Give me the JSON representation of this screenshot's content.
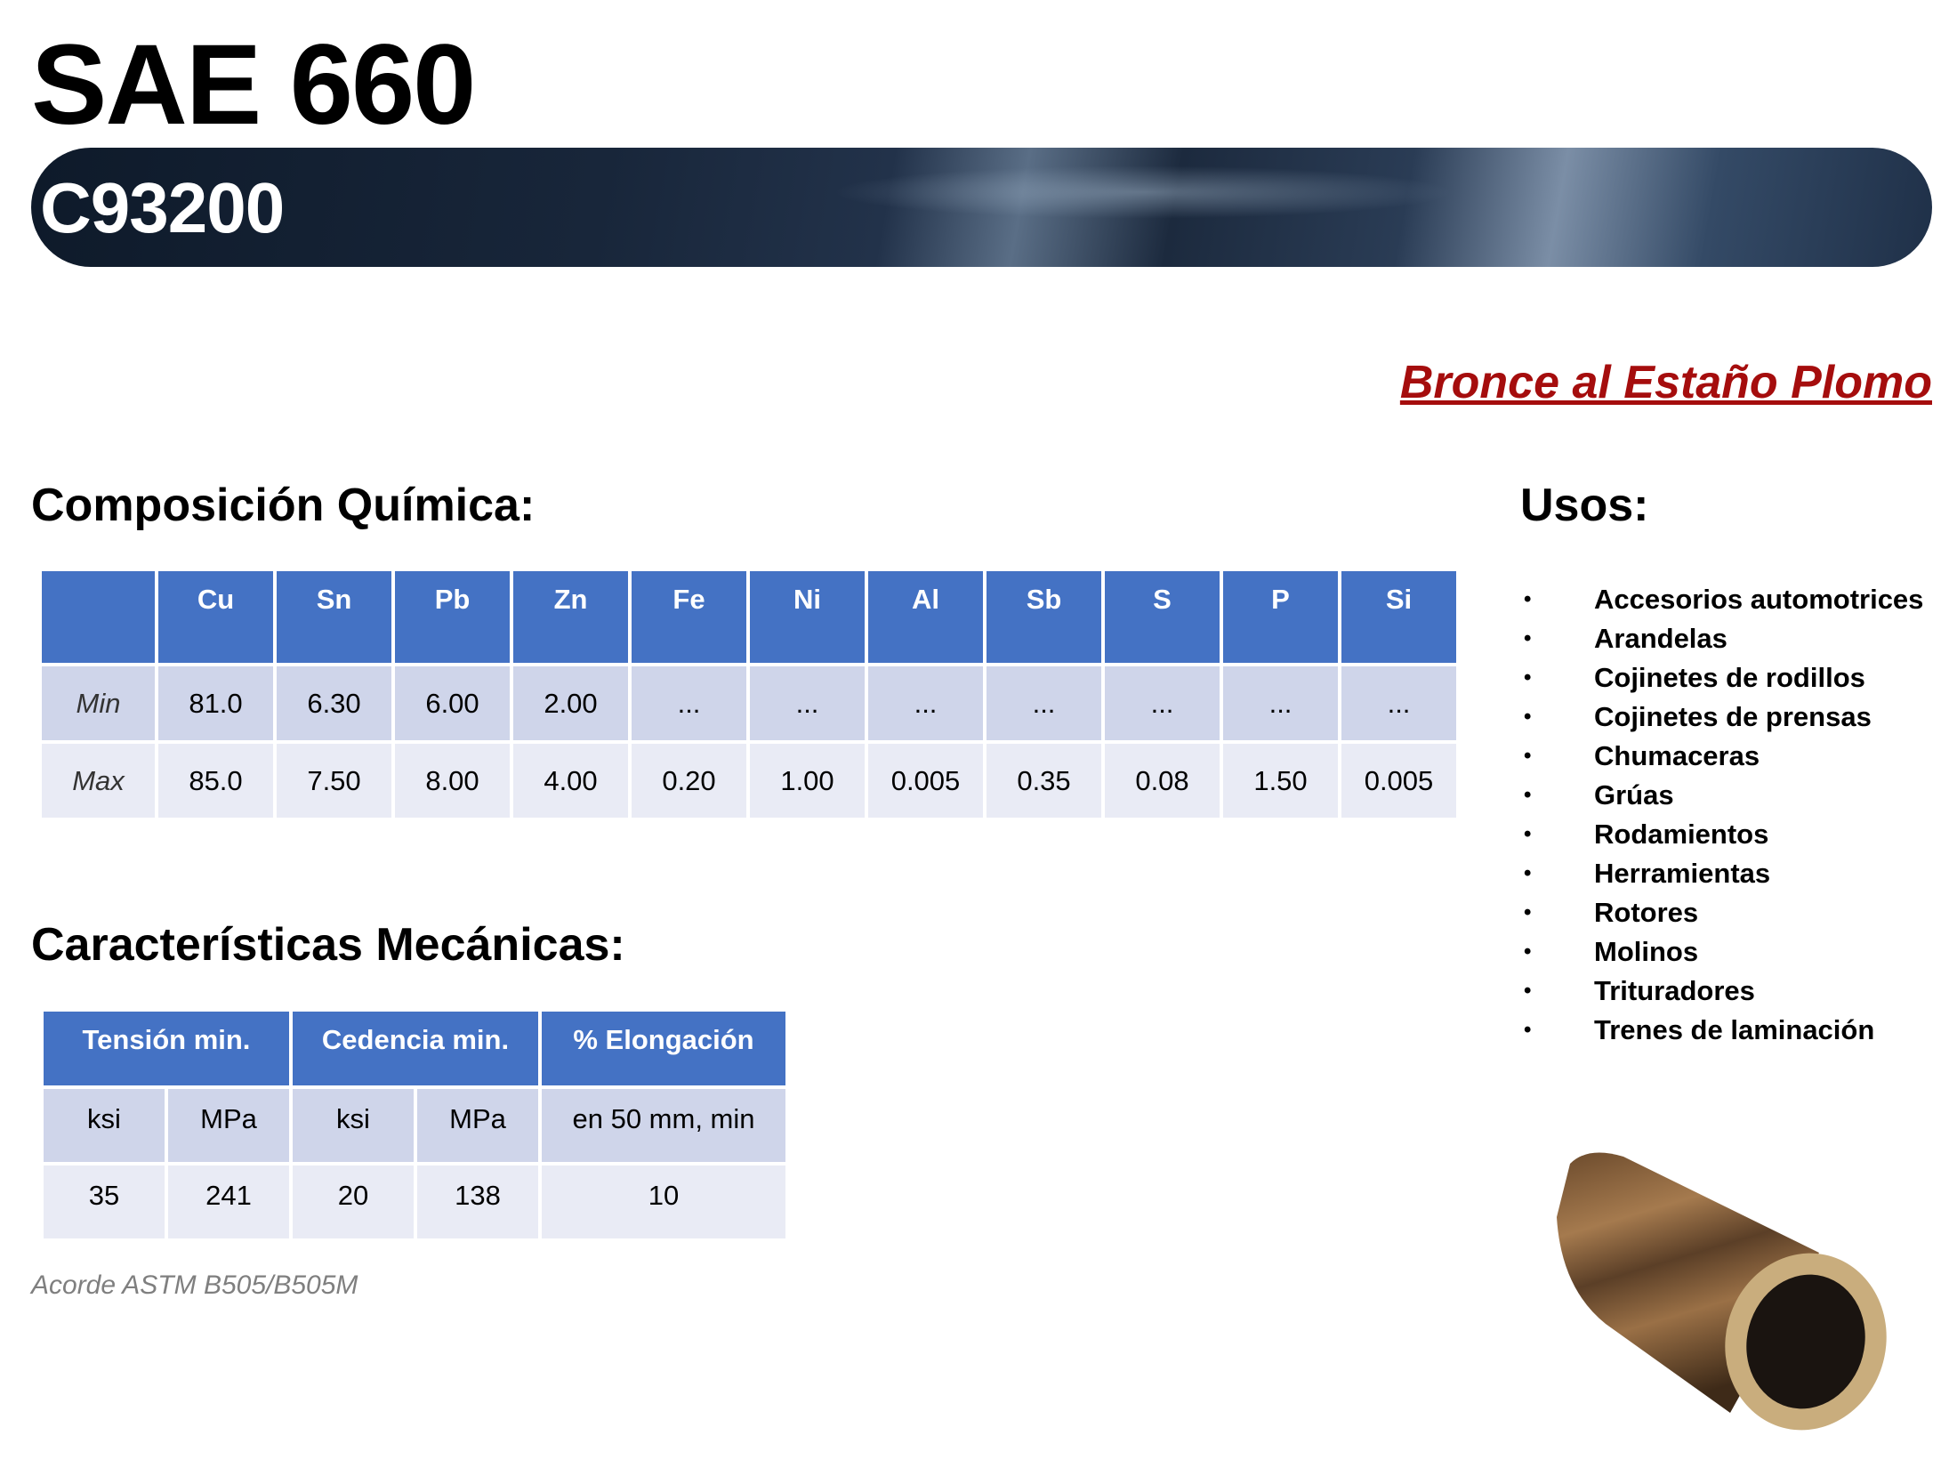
{
  "header": {
    "title": "SAE 660",
    "code": "C93200",
    "subtitle": "Bronce al Estaño Plomo"
  },
  "composition": {
    "heading": "Composición Química:",
    "columns": [
      "",
      "Cu",
      "Sn",
      "Pb",
      "Zn",
      "Fe",
      "Ni",
      "Al",
      "Sb",
      "S",
      "P",
      "Si"
    ],
    "rows": [
      [
        "Min",
        "81.0",
        "6.30",
        "6.00",
        "2.00",
        "...",
        "...",
        "...",
        "...",
        "...",
        "...",
        "..."
      ],
      [
        "Max",
        "85.0",
        "7.50",
        "8.00",
        "4.00",
        "0.20",
        "1.00",
        "0.005",
        "0.35",
        "0.08",
        "1.50",
        "0.005"
      ]
    ]
  },
  "mechanical": {
    "heading": "Características Mecánicas:",
    "groups": [
      "Tensión min.",
      "Cedencia min.",
      "% Elongación"
    ],
    "units": [
      "ksi",
      "MPa",
      "ksi",
      "MPa",
      "en 50 mm, min"
    ],
    "values": [
      "35",
      "241",
      "20",
      "138",
      "10"
    ],
    "note": "Acorde ASTM B505/B505M"
  },
  "uses": {
    "heading": "Usos:",
    "bullet": "•",
    "items": [
      "Accesorios automotrices",
      "Arandelas",
      "Cojinetes de rodillos",
      "Cojinetes de prensas",
      "Chumaceras",
      "Grúas",
      "Rodamientos",
      "Herramientas",
      "Rotores",
      "Molinos",
      "Trituradores",
      "Trenes de laminación"
    ]
  },
  "colors": {
    "header_blue": "#4472c4",
    "row_dark": "#cfd5ea",
    "row_light": "#e9ebf5",
    "subtitle_red": "#a50d0d"
  },
  "image": {
    "icon": "bronze-tube-image"
  }
}
